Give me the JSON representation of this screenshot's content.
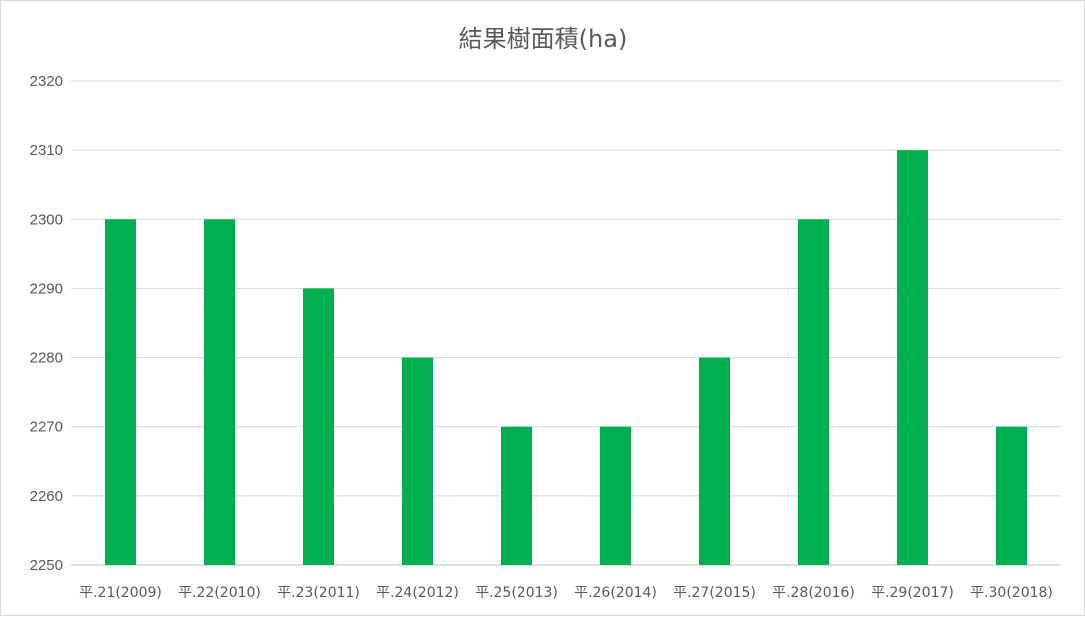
{
  "chart_data": {
    "type": "bar",
    "title": "結果樹面積(ha)",
    "categories": [
      "平.21(2009)",
      "平.22(2010)",
      "平.23(2011)",
      "平.24(2012)",
      "平.25(2013)",
      "平.26(2014)",
      "平.27(2015)",
      "平.28(2016)",
      "平.29(2017)",
      "平.30(2018)"
    ],
    "values": [
      2300,
      2300,
      2290,
      2280,
      2270,
      2270,
      2280,
      2300,
      2310,
      2270
    ],
    "ylim": [
      2250,
      2320
    ],
    "yticks": [
      2250,
      2260,
      2270,
      2280,
      2290,
      2300,
      2310,
      2320
    ],
    "xlabel": "",
    "ylabel": "",
    "grid": true,
    "legend": "none",
    "bar_color": "#00b050"
  }
}
